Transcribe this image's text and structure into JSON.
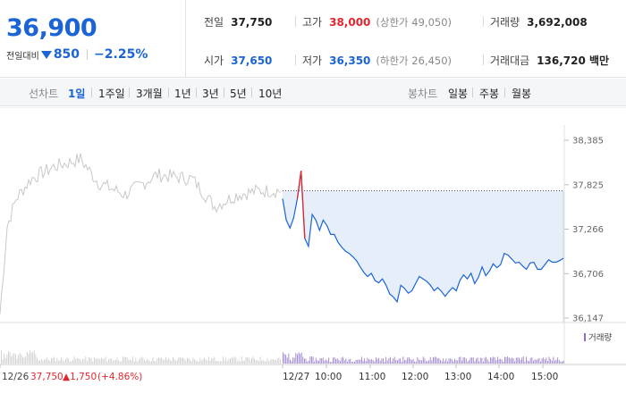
{
  "quote": {
    "price": "36,900",
    "change_caption": "전일대비",
    "change_amount": "850",
    "change_rate": "−2.25%"
  },
  "stats": {
    "prev_close": {
      "label": "전일",
      "value": "37,750"
    },
    "open": {
      "label": "시가",
      "value": "37,650"
    },
    "high": {
      "label": "고가",
      "value": "38,000",
      "note": "(상한가 49,050)"
    },
    "low": {
      "label": "저가",
      "value": "36,350",
      "note": "(하한가 26,450)"
    },
    "volume": {
      "label": "거래량",
      "value": "3,692,008"
    },
    "turnover": {
      "label": "거래대금",
      "value": "136,720 백만"
    }
  },
  "toolbar": {
    "line_caption": "선차트",
    "line_ranges": [
      "1일",
      "1주일",
      "3개월",
      "1년",
      "3년",
      "5년",
      "10년"
    ],
    "active_range": "1일",
    "candle_caption": "봉차트",
    "candle_ranges": [
      "일봉",
      "주봉",
      "월봉"
    ]
  },
  "colors": {
    "accent_blue": "#1a64d6",
    "up_red": "#e3262d",
    "prev_day_line": "#c8c8c8",
    "fill": "#e6eefa"
  },
  "chart_data": {
    "type": "line",
    "y_ticks": [
      "38,385",
      "37,825",
      "37,266",
      "36,706",
      "36,147"
    ],
    "ylim": [
      36147,
      38385
    ],
    "reference_price": 37750,
    "x_ticks": [
      "12/27",
      "10:00",
      "11:00",
      "12:00",
      "13:00",
      "14:00",
      "15:00"
    ],
    "volume_legend": "거래량",
    "prev_day": {
      "date": "12/26",
      "close": "37,750",
      "change": "▲1,750",
      "change_rate": "(+4.86%)"
    },
    "series": [
      {
        "time": [
          "09:00",
          "09:05",
          "09:10",
          "09:15",
          "09:20",
          "09:25",
          "09:30",
          "09:35",
          "09:40",
          "09:45",
          "09:50",
          "09:55",
          "10:00",
          "10:05",
          "10:10",
          "10:15",
          "10:20",
          "10:25",
          "10:30",
          "10:35",
          "10:40",
          "10:45",
          "10:50",
          "10:55",
          "11:00",
          "11:05",
          "11:10",
          "11:15",
          "11:20",
          "11:25",
          "11:30",
          "11:35",
          "11:40",
          "11:45",
          "11:50",
          "11:55",
          "12:00",
          "12:05",
          "12:10",
          "12:15",
          "12:20",
          "12:25",
          "12:30",
          "12:35",
          "12:40",
          "12:45",
          "12:50",
          "12:55",
          "13:00",
          "13:05",
          "13:10",
          "13:15",
          "13:20",
          "13:25",
          "13:30",
          "13:35",
          "13:40",
          "13:45",
          "13:50",
          "13:55",
          "14:00",
          "14:05",
          "14:10",
          "14:15",
          "14:20",
          "14:25",
          "14:30",
          "14:35",
          "14:40",
          "14:45",
          "14:50",
          "14:55",
          "15:00",
          "15:05",
          "15:10",
          "15:15",
          "15:20"
        ],
        "values": [
          37650,
          37380,
          37280,
          37410,
          37650,
          38000,
          37150,
          37050,
          37450,
          37380,
          37250,
          37380,
          37310,
          37200,
          37200,
          37100,
          37040,
          36990,
          36960,
          36920,
          36870,
          36790,
          36720,
          36670,
          36710,
          36620,
          36590,
          36640,
          36560,
          36450,
          36410,
          36350,
          36560,
          36520,
          36460,
          36490,
          36580,
          36670,
          36640,
          36610,
          36560,
          36490,
          36530,
          36480,
          36420,
          36480,
          36530,
          36490,
          36620,
          36690,
          36640,
          36710,
          36580,
          36660,
          36790,
          36680,
          36740,
          36830,
          36780,
          36820,
          36960,
          36940,
          36890,
          36840,
          36850,
          36800,
          36760,
          36840,
          36850,
          36760,
          36760,
          36820,
          36880,
          36850,
          36850,
          36870,
          36900
        ]
      }
    ]
  }
}
